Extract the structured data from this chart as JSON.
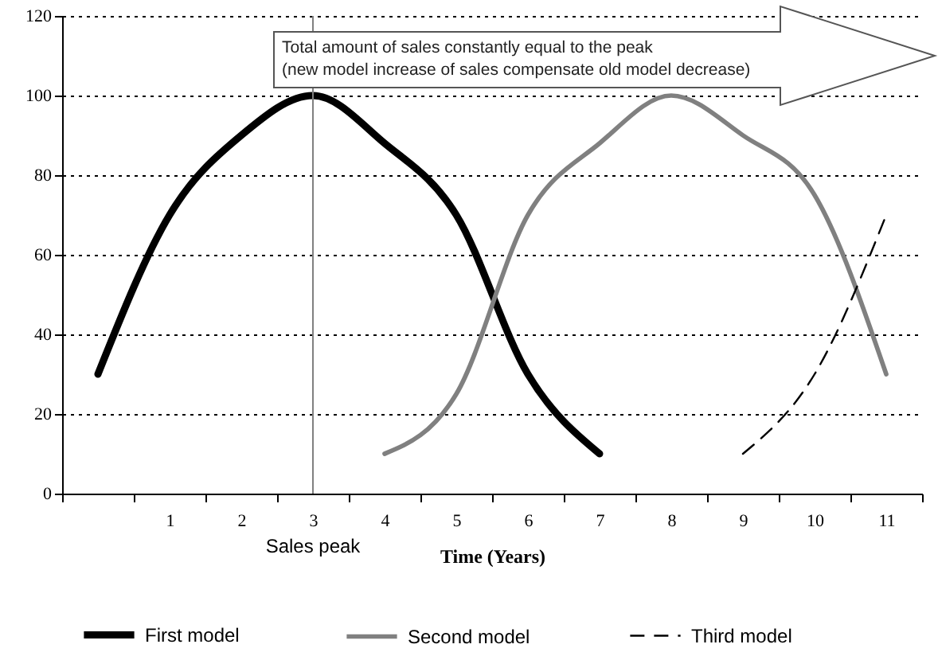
{
  "chart_data": {
    "type": "line",
    "xlabel": "Time (Years)",
    "categories": [
      null,
      "1",
      "2",
      "3",
      "4",
      "5",
      "6",
      "7",
      "8",
      "9",
      "10",
      "11"
    ],
    "series": [
      {
        "name": "First model",
        "color": "#000000",
        "line_style": "solid",
        "values": [
          30,
          70,
          90,
          100,
          88,
          70,
          30,
          10,
          null,
          null,
          null,
          null
        ]
      },
      {
        "name": "Second model",
        "color": "#808080",
        "line_style": "solid",
        "values": [
          null,
          null,
          null,
          null,
          10,
          25,
          70,
          88,
          100,
          90,
          75,
          30
        ]
      },
      {
        "name": "Third model",
        "color": "#000000",
        "line_style": "dashed",
        "values": [
          null,
          null,
          null,
          null,
          null,
          null,
          null,
          null,
          null,
          10,
          30,
          70
        ]
      }
    ],
    "ylim": [
      0,
      120
    ],
    "yticks": [
      0,
      20,
      40,
      60,
      80,
      100,
      120
    ],
    "grid": "y",
    "legend": "bottom",
    "ref_lines": [
      {
        "axis": "x",
        "value": "3",
        "label": "Sales peak",
        "color": "#808080"
      }
    ],
    "annotations": [
      "Total amount of sales constantly equal to the peak",
      "(new model increase of sales compensate old model decrease)"
    ]
  }
}
